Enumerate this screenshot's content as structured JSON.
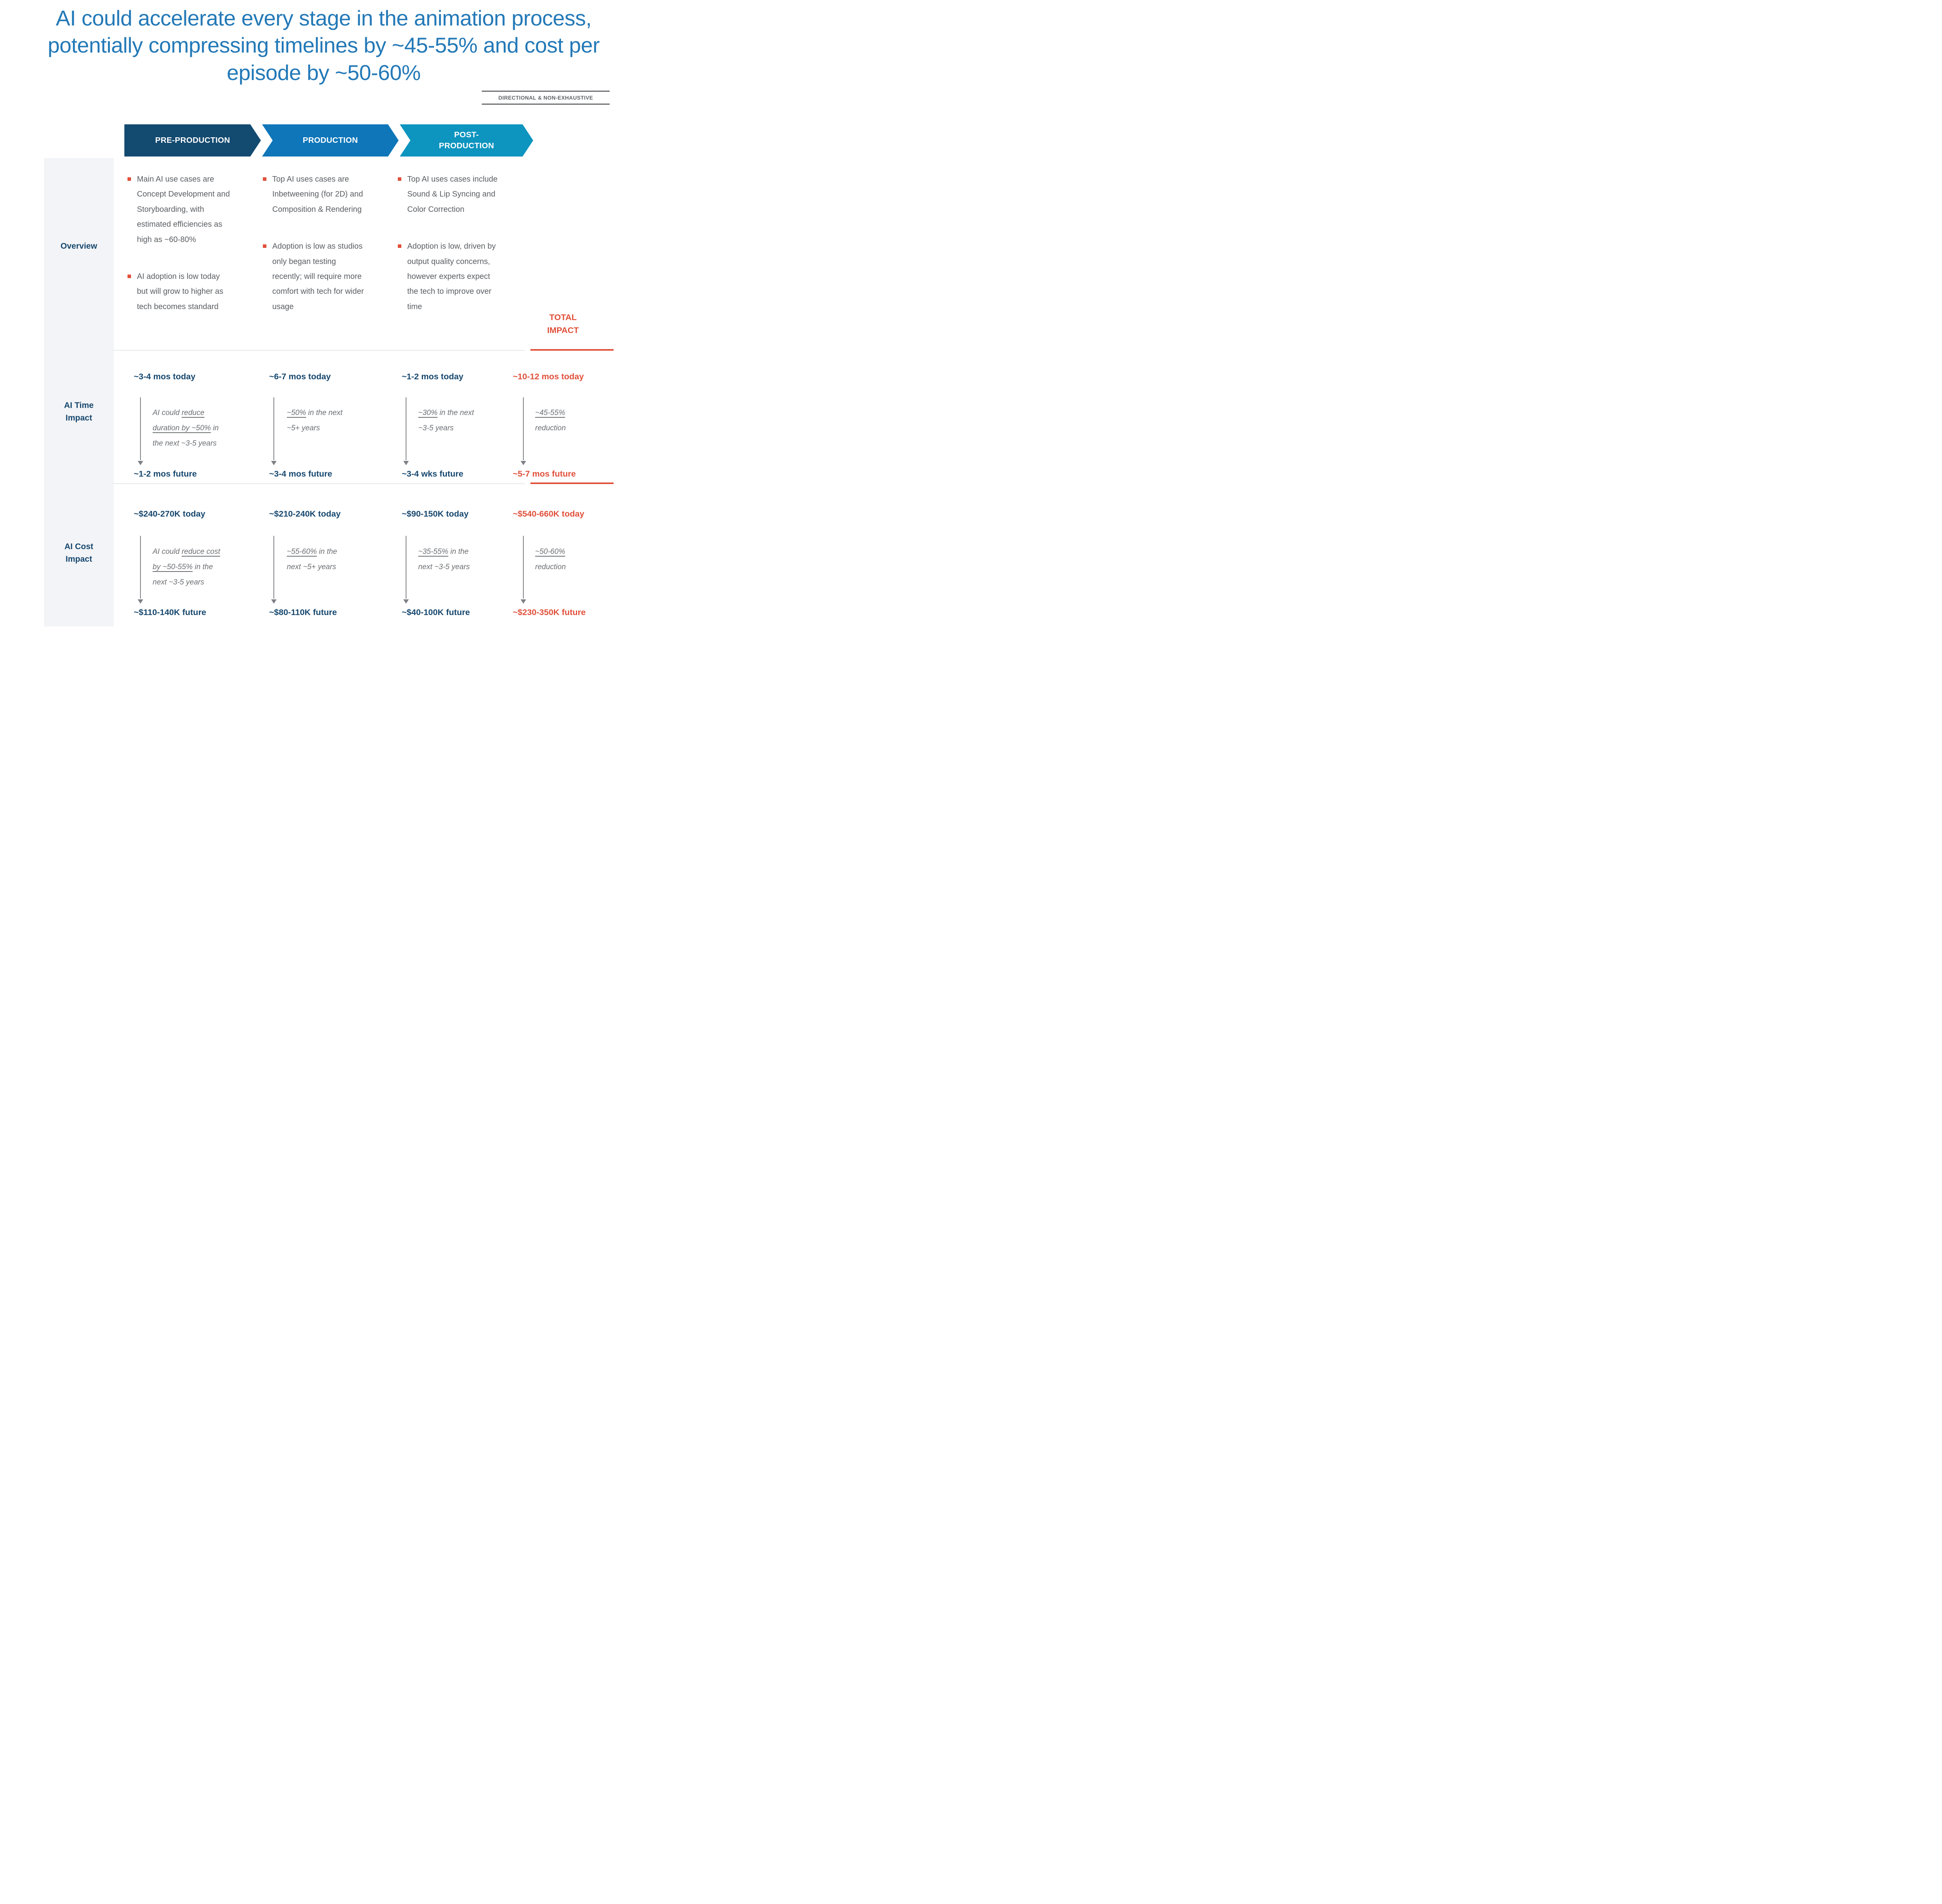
{
  "title": "AI could accelerate every stage in the animation process, potentially compressing timelines by ~45-55% and cost per episode by ~50-60%",
  "disclaimer": "DIRECTIONAL & NON-EXHAUSTIVE",
  "colors": {
    "title_blue": "#2379b7",
    "chevron_pre": "#134a70",
    "chevron_production": "#0e76b9",
    "chevron_post": "#0d94bf",
    "navy_text": "#16476e",
    "accent_red": "#e0503a",
    "body_gray": "#5a5e62"
  },
  "stages": [
    {
      "label": "PRE-PRODUCTION"
    },
    {
      "label": "PRODUCTION"
    },
    {
      "label": "POST-PRODUCTION"
    }
  ],
  "rows": {
    "overview": "Overview",
    "time": "AI Time Impact",
    "cost": "AI Cost Impact"
  },
  "total_header": "TOTAL IMPACT",
  "overview": {
    "pre": [
      "Main AI use cases are Concept Development and Storyboarding, with estimated efficiencies as high as ~60-80%",
      "AI adoption is low today but will grow to higher as tech becomes standard"
    ],
    "production": [
      "Top AI uses cases are Inbetweening (for 2D) and Composition & Rendering",
      "Adoption is low as studios only began testing recently; will require more comfort with tech for wider usage"
    ],
    "post": [
      "Top AI uses cases include Sound & Lip Syncing and Color Correction",
      "Adoption is low, driven by output quality concerns, however experts expect the tech to improve over time"
    ]
  },
  "time": {
    "cols": [
      {
        "today": "~3-4 mos today",
        "prefix": "AI could ",
        "underline": "reduce duration by ~50%",
        "suffix": " in the next ~3-5 years",
        "future": "~1-2 mos future"
      },
      {
        "today": "~6-7 mos today",
        "prefix": "",
        "underline": "~50%",
        "suffix": " in the next ~5+ years",
        "future": "~3-4 mos future"
      },
      {
        "today": "~1-2 mos today",
        "prefix": "",
        "underline": "~30%",
        "suffix": " in the next ~3-5 years",
        "future": "~3-4 wks future"
      },
      {
        "today": "~10-12 mos today",
        "prefix": "",
        "underline": "~45-55%",
        "suffix": " reduction",
        "future": "~5-7 mos future"
      }
    ]
  },
  "cost": {
    "cols": [
      {
        "today": "~$240-270K today",
        "prefix": "AI could ",
        "underline": "reduce cost by ~50-55%",
        "suffix": " in the next ~3-5 years",
        "future": "~$110-140K future"
      },
      {
        "today": "~$210-240K today",
        "prefix": "",
        "underline": "~55-60%",
        "suffix": " in the next ~5+ years",
        "future": "~$80-110K future"
      },
      {
        "today": "~$90-150K today",
        "prefix": "",
        "underline": "~35-55%",
        "suffix": " in the next ~3-5 years",
        "future": "~$40-100K future"
      },
      {
        "today": "~$540-660K today",
        "prefix": "",
        "underline": "~50-60%",
        "suffix": " reduction",
        "future": "~$230-350K future"
      }
    ]
  }
}
